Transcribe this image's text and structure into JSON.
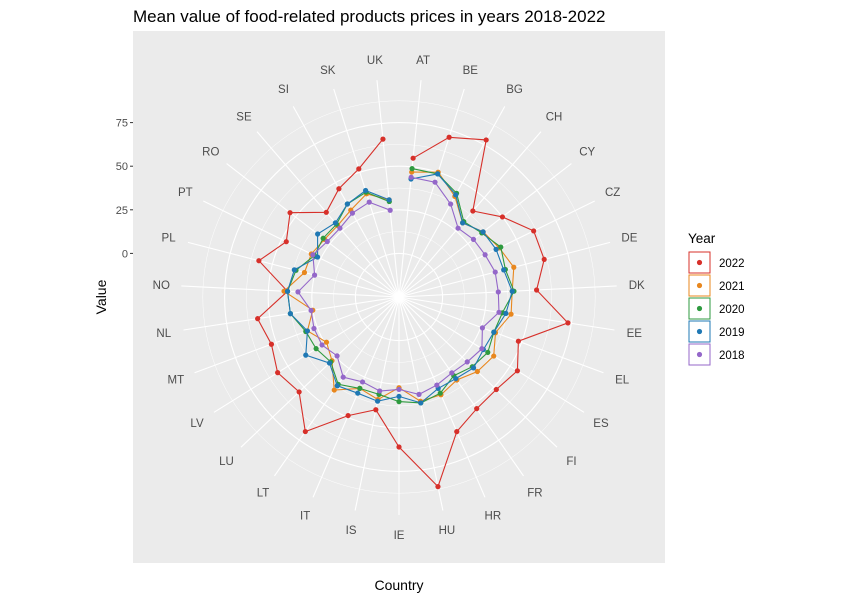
{
  "chart_data": {
    "type": "line",
    "coord": "polar",
    "title": "Mean value of food-related products prices in years 2018-2022",
    "xlabel": "Country",
    "ylabel": "Value",
    "categories": [
      "AT",
      "BE",
      "BG",
      "CH",
      "CY",
      "CZ",
      "DE",
      "DK",
      "EE",
      "EL",
      "ES",
      "FI",
      "FR",
      "HR",
      "HU",
      "IE",
      "IS",
      "IT",
      "LT",
      "LU",
      "LV",
      "MT",
      "NL",
      "NO",
      "PL",
      "PT",
      "RO",
      "SE",
      "SI",
      "SK",
      "UK"
    ],
    "radial_ticks": [
      {
        "label": "0",
        "value": 0
      },
      {
        "label": "25",
        "value": 25
      },
      {
        "label": "50",
        "value": 50
      },
      {
        "label": "75",
        "value": 75
      }
    ],
    "rmax": 100,
    "radial_offset": 25,
    "grid": true,
    "legend": {
      "title": "Year",
      "placement": "right"
    },
    "series": [
      {
        "name": "2022",
        "color": "#D7302A",
        "values": [
          55,
          71,
          78,
          40,
          50,
          61,
          61,
          54,
          73,
          48,
          55,
          52,
          53,
          59,
          86,
          61,
          41,
          49,
          69,
          54,
          57,
          53,
          57,
          39,
          58,
          47,
          54,
          39,
          46,
          52,
          66
        ]
      },
      {
        "name": "2021",
        "color": "#E8871E",
        "values": [
          47,
          50,
          41,
          31,
          36,
          39,
          43,
          40,
          40,
          34,
          39,
          37,
          33,
          36,
          36,
          27,
          35,
          32,
          40,
          28,
          24,
          31,
          25,
          41,
          31,
          31,
          29,
          29,
          32,
          37,
          31
        ]
      },
      {
        "name": "2020",
        "color": "#2E9A3F",
        "values": [
          49,
          49,
          43,
          32,
          35,
          40,
          38,
          41,
          35,
          33,
          35,
          33,
          30,
          35,
          37,
          35,
          32,
          32,
          36,
          29,
          31,
          32,
          38,
          39,
          36,
          29,
          30,
          30,
          36,
          38,
          30
        ]
      },
      {
        "name": "2019",
        "color": "#1F78B4",
        "values": [
          43,
          49,
          42,
          31,
          36,
          37,
          37,
          40,
          37,
          33,
          32,
          34,
          32,
          32,
          37,
          32,
          36,
          35,
          37,
          30,
          38,
          31,
          38,
          39,
          37,
          27,
          34,
          31,
          36,
          39,
          31
        ]
      },
      {
        "name": "2018",
        "color": "#9467C9",
        "values": [
          44,
          44,
          36,
          27,
          29,
          30,
          32,
          32,
          33,
          26,
          31,
          29,
          28,
          30,
          32,
          28,
          30,
          28,
          31,
          24,
          27,
          27,
          26,
          33,
          25,
          30,
          27,
          27,
          30,
          32,
          25
        ]
      }
    ]
  }
}
